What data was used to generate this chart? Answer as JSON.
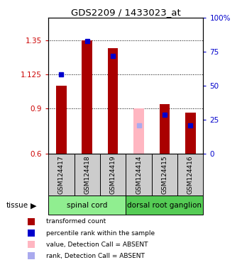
{
  "title": "GDS2209 / 1433023_at",
  "samples": [
    "GSM124417",
    "GSM124418",
    "GSM124419",
    "GSM124414",
    "GSM124415",
    "GSM124416"
  ],
  "red_values": [
    1.05,
    1.35,
    1.3,
    null,
    0.93,
    0.87
  ],
  "red_absent_values": [
    null,
    null,
    null,
    0.9,
    null,
    null
  ],
  "blue_values": [
    0.585,
    0.83,
    0.72,
    null,
    0.285,
    0.21
  ],
  "blue_absent_values": [
    null,
    null,
    null,
    0.21,
    null,
    null
  ],
  "ylim_left": [
    0.6,
    1.5
  ],
  "ylim_right": [
    0,
    100
  ],
  "yticks_left": [
    0.6,
    0.9,
    1.125,
    1.35
  ],
  "ytick_labels_left": [
    "0.6",
    "0.9",
    "1.125",
    "1.35"
  ],
  "yticks_right": [
    0,
    25,
    50,
    75,
    100
  ],
  "ytick_labels_right": [
    "0",
    "25",
    "50",
    "75",
    "100%"
  ],
  "tissue_groups": [
    {
      "label": "spinal cord",
      "start": 0,
      "end": 3,
      "color": "#90ee90"
    },
    {
      "label": "dorsal root ganglion",
      "start": 3,
      "end": 6,
      "color": "#55cc55"
    }
  ],
  "bar_width": 0.4,
  "red_color": "#aa0000",
  "red_absent_color": "#ffb6c1",
  "blue_color": "#0000cc",
  "blue_absent_color": "#aaaaee",
  "label_color_left": "#cc0000",
  "label_color_right": "#0000cc",
  "plot_bg": "#ffffff",
  "sample_box_color": "#cccccc",
  "legend_items": [
    {
      "color": "#aa0000",
      "label": "transformed count"
    },
    {
      "color": "#0000cc",
      "label": "percentile rank within the sample"
    },
    {
      "color": "#ffb6c1",
      "label": "value, Detection Call = ABSENT"
    },
    {
      "color": "#aaaaee",
      "label": "rank, Detection Call = ABSENT"
    }
  ]
}
